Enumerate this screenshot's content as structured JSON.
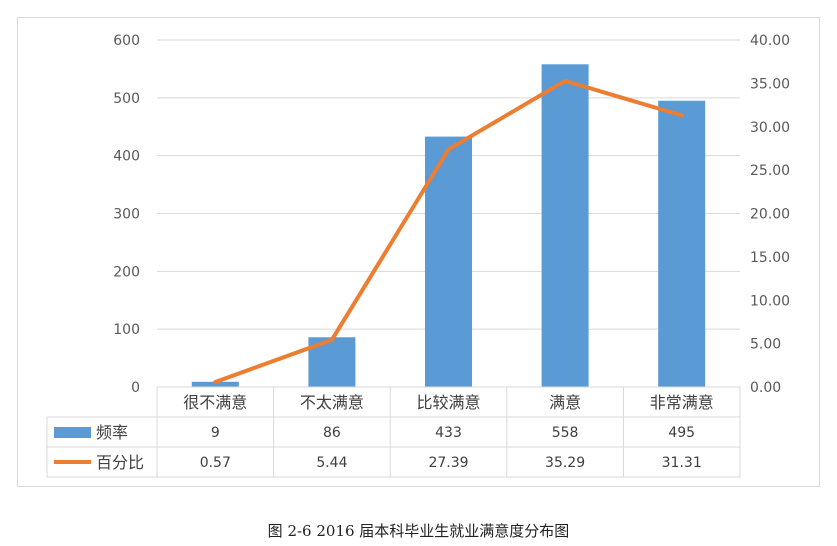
{
  "chart_data": {
    "type": "bar",
    "categories": [
      "很不满意",
      "不太满意",
      "比较满意",
      "满意",
      "非常满意"
    ],
    "series": [
      {
        "name": "频率",
        "type": "bar",
        "axis": "left",
        "color": "#5b9bd5",
        "values": [
          9,
          86,
          433,
          558,
          495
        ],
        "display": [
          "9",
          "86",
          "433",
          "558",
          "495"
        ]
      },
      {
        "name": "百分比",
        "type": "line",
        "axis": "right",
        "color": "#ed7d31",
        "values": [
          0.57,
          5.44,
          27.39,
          35.29,
          31.31
        ],
        "display": [
          "0.57",
          "5.44",
          "27.39",
          "35.29",
          "31.31"
        ]
      }
    ],
    "y_left": {
      "ylim": [
        0,
        600
      ],
      "ticks": [
        "0",
        "100",
        "200",
        "300",
        "400",
        "500",
        "600"
      ]
    },
    "y_right": {
      "ylim": [
        0,
        40
      ],
      "ticks": [
        "0.00",
        "5.00",
        "10.00",
        "15.00",
        "20.00",
        "25.00",
        "30.00",
        "35.00",
        "40.00"
      ]
    },
    "grid": true,
    "legend": "data-table"
  },
  "caption": "图 2-6 2016 届本科毕业生就业满意度分布图"
}
